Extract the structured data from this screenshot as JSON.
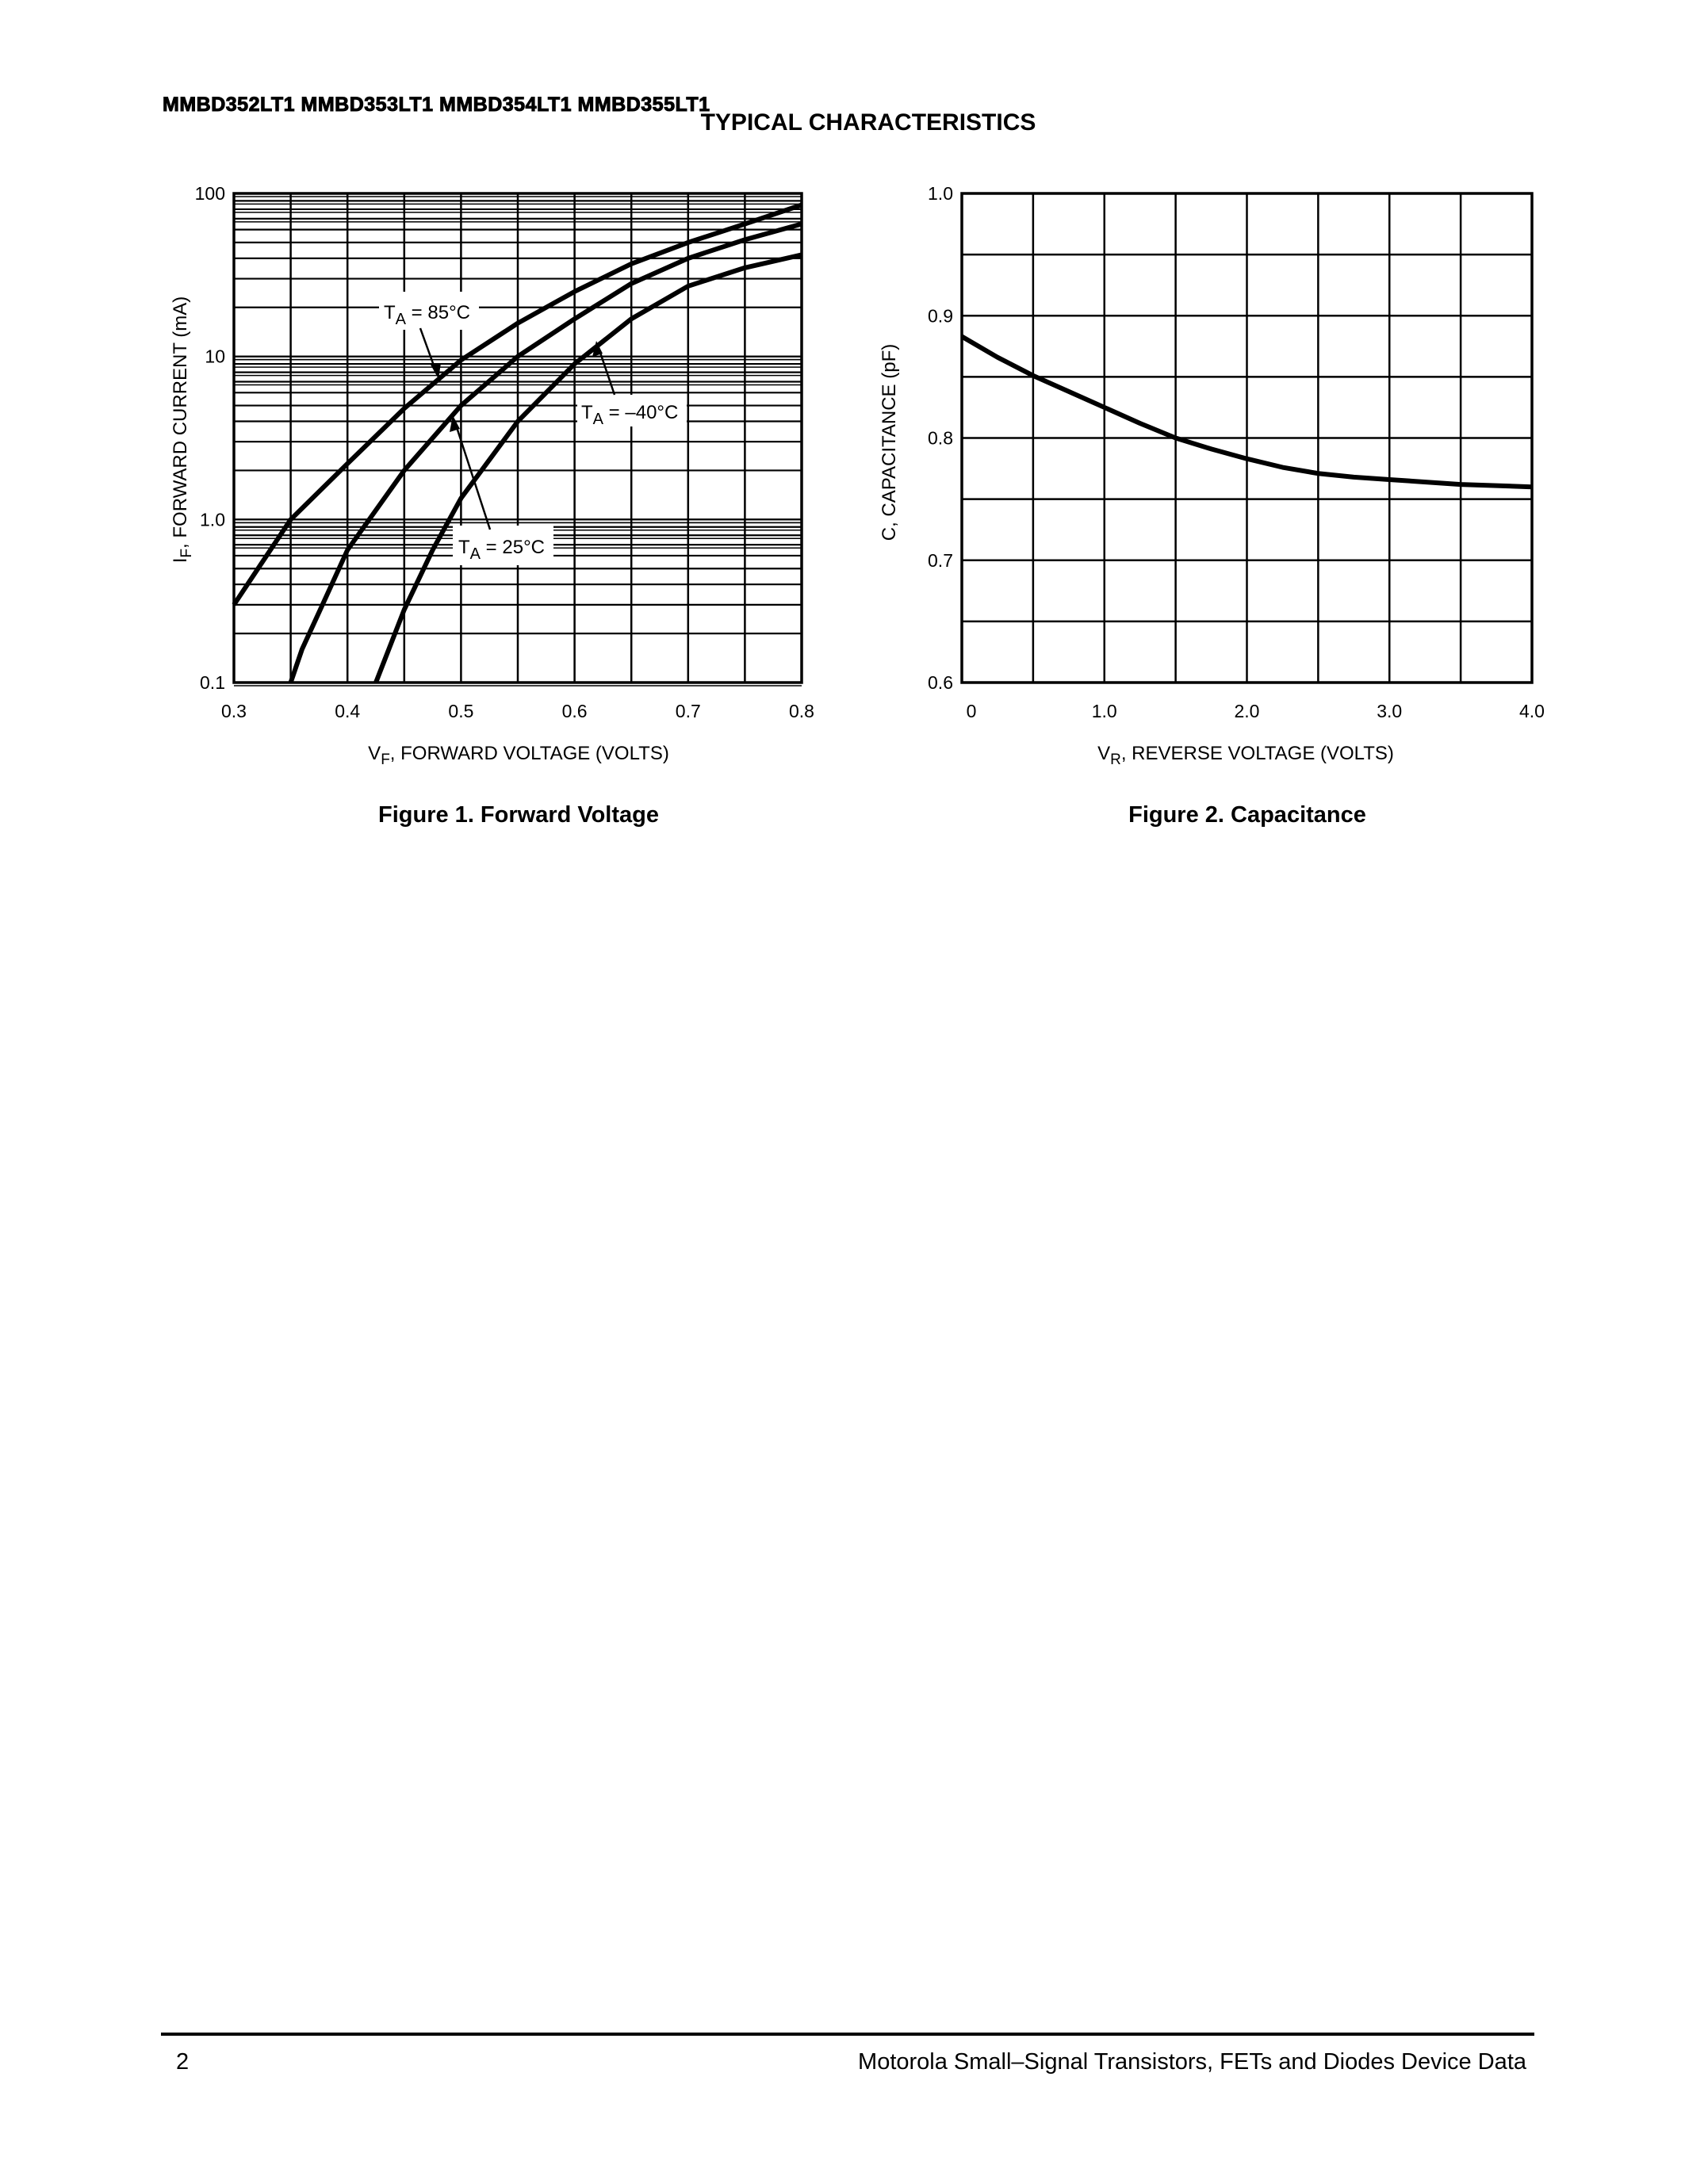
{
  "header": {
    "part_numbers": "MMBD352LT1 MMBD353LT1 MMBD354LT1 MMBD355LT1",
    "section_title": "TYPICAL CHARACTERISTICS"
  },
  "footer": {
    "page_number": "2",
    "publication": "Motorola Small–Signal Transistors, FETs and Diodes Device Data"
  },
  "chart_data": [
    {
      "type": "line",
      "title": "Figure 1. Forward Voltage",
      "xlabel": {
        "main": "V",
        "sub": "F",
        "rest": ", FORWARD VOLTAGE (VOLTS)"
      },
      "ylabel": {
        "main": "I",
        "sub": "F",
        "rest": ", FORWARD CURRENT (mA)"
      },
      "xlim": [
        0.3,
        0.8
      ],
      "ylim": [
        0.1,
        100
      ],
      "yscale": "log",
      "grid": true,
      "xticks": [
        "0.3",
        "0.4",
        "0.5",
        "0.6",
        "0.7",
        "0.8"
      ],
      "yticks": [
        "0.1",
        "1.0",
        "10",
        "100"
      ],
      "series": [
        {
          "name": "TA = 85°C",
          "label_main": "T",
          "label_sub": "A",
          "label_rest": " = 85°C",
          "x": [
            0.3,
            0.35,
            0.4,
            0.45,
            0.5,
            0.55,
            0.6,
            0.65,
            0.7,
            0.75,
            0.8
          ],
          "y": [
            0.3,
            1.0,
            2.2,
            4.8,
            9.5,
            16,
            25,
            37,
            50,
            65,
            85
          ]
        },
        {
          "name": "TA = 25°C",
          "label_main": "T",
          "label_sub": "A",
          "label_rest": " = 25°C",
          "x": [
            0.35,
            0.36,
            0.375,
            0.4,
            0.45,
            0.5,
            0.55,
            0.6,
            0.65,
            0.7,
            0.75,
            0.8
          ],
          "y": [
            0.1,
            0.16,
            0.27,
            0.65,
            2.0,
            5.0,
            10,
            17,
            28,
            40,
            52,
            65
          ]
        },
        {
          "name": "TA = –40°C",
          "label_main": "T",
          "label_sub": "A",
          "label_rest": " = –40°C",
          "x": [
            0.425,
            0.45,
            0.475,
            0.5,
            0.55,
            0.6,
            0.65,
            0.7,
            0.75,
            0.8
          ],
          "y": [
            0.1,
            0.28,
            0.65,
            1.35,
            4.0,
            9.0,
            17,
            27,
            35,
            42
          ]
        }
      ]
    },
    {
      "type": "line",
      "title": "Figure 2. Capacitance",
      "xlabel": {
        "main": "V",
        "sub": "R",
        "rest": ", REVERSE VOLTAGE (VOLTS)"
      },
      "ylabel": {
        "main": "C, CAPACITANCE (pF)",
        "sub": "",
        "rest": ""
      },
      "xlim": [
        0,
        4.0
      ],
      "ylim": [
        0.6,
        1.0
      ],
      "grid": true,
      "xticks": [
        "0",
        "1.0",
        "2.0",
        "3.0",
        "4.0"
      ],
      "yticks": [
        "0.6",
        "0.7",
        "0.8",
        "0.9",
        "1.0"
      ],
      "series": [
        {
          "name": "C",
          "x": [
            0,
            0.25,
            0.5,
            0.75,
            1.0,
            1.25,
            1.5,
            1.75,
            2.0,
            2.25,
            2.5,
            2.75,
            3.0,
            3.5,
            4.0
          ],
          "y": [
            0.883,
            0.866,
            0.851,
            0.838,
            0.825,
            0.812,
            0.8,
            0.791,
            0.783,
            0.776,
            0.771,
            0.768,
            0.766,
            0.762,
            0.76
          ]
        }
      ]
    }
  ]
}
